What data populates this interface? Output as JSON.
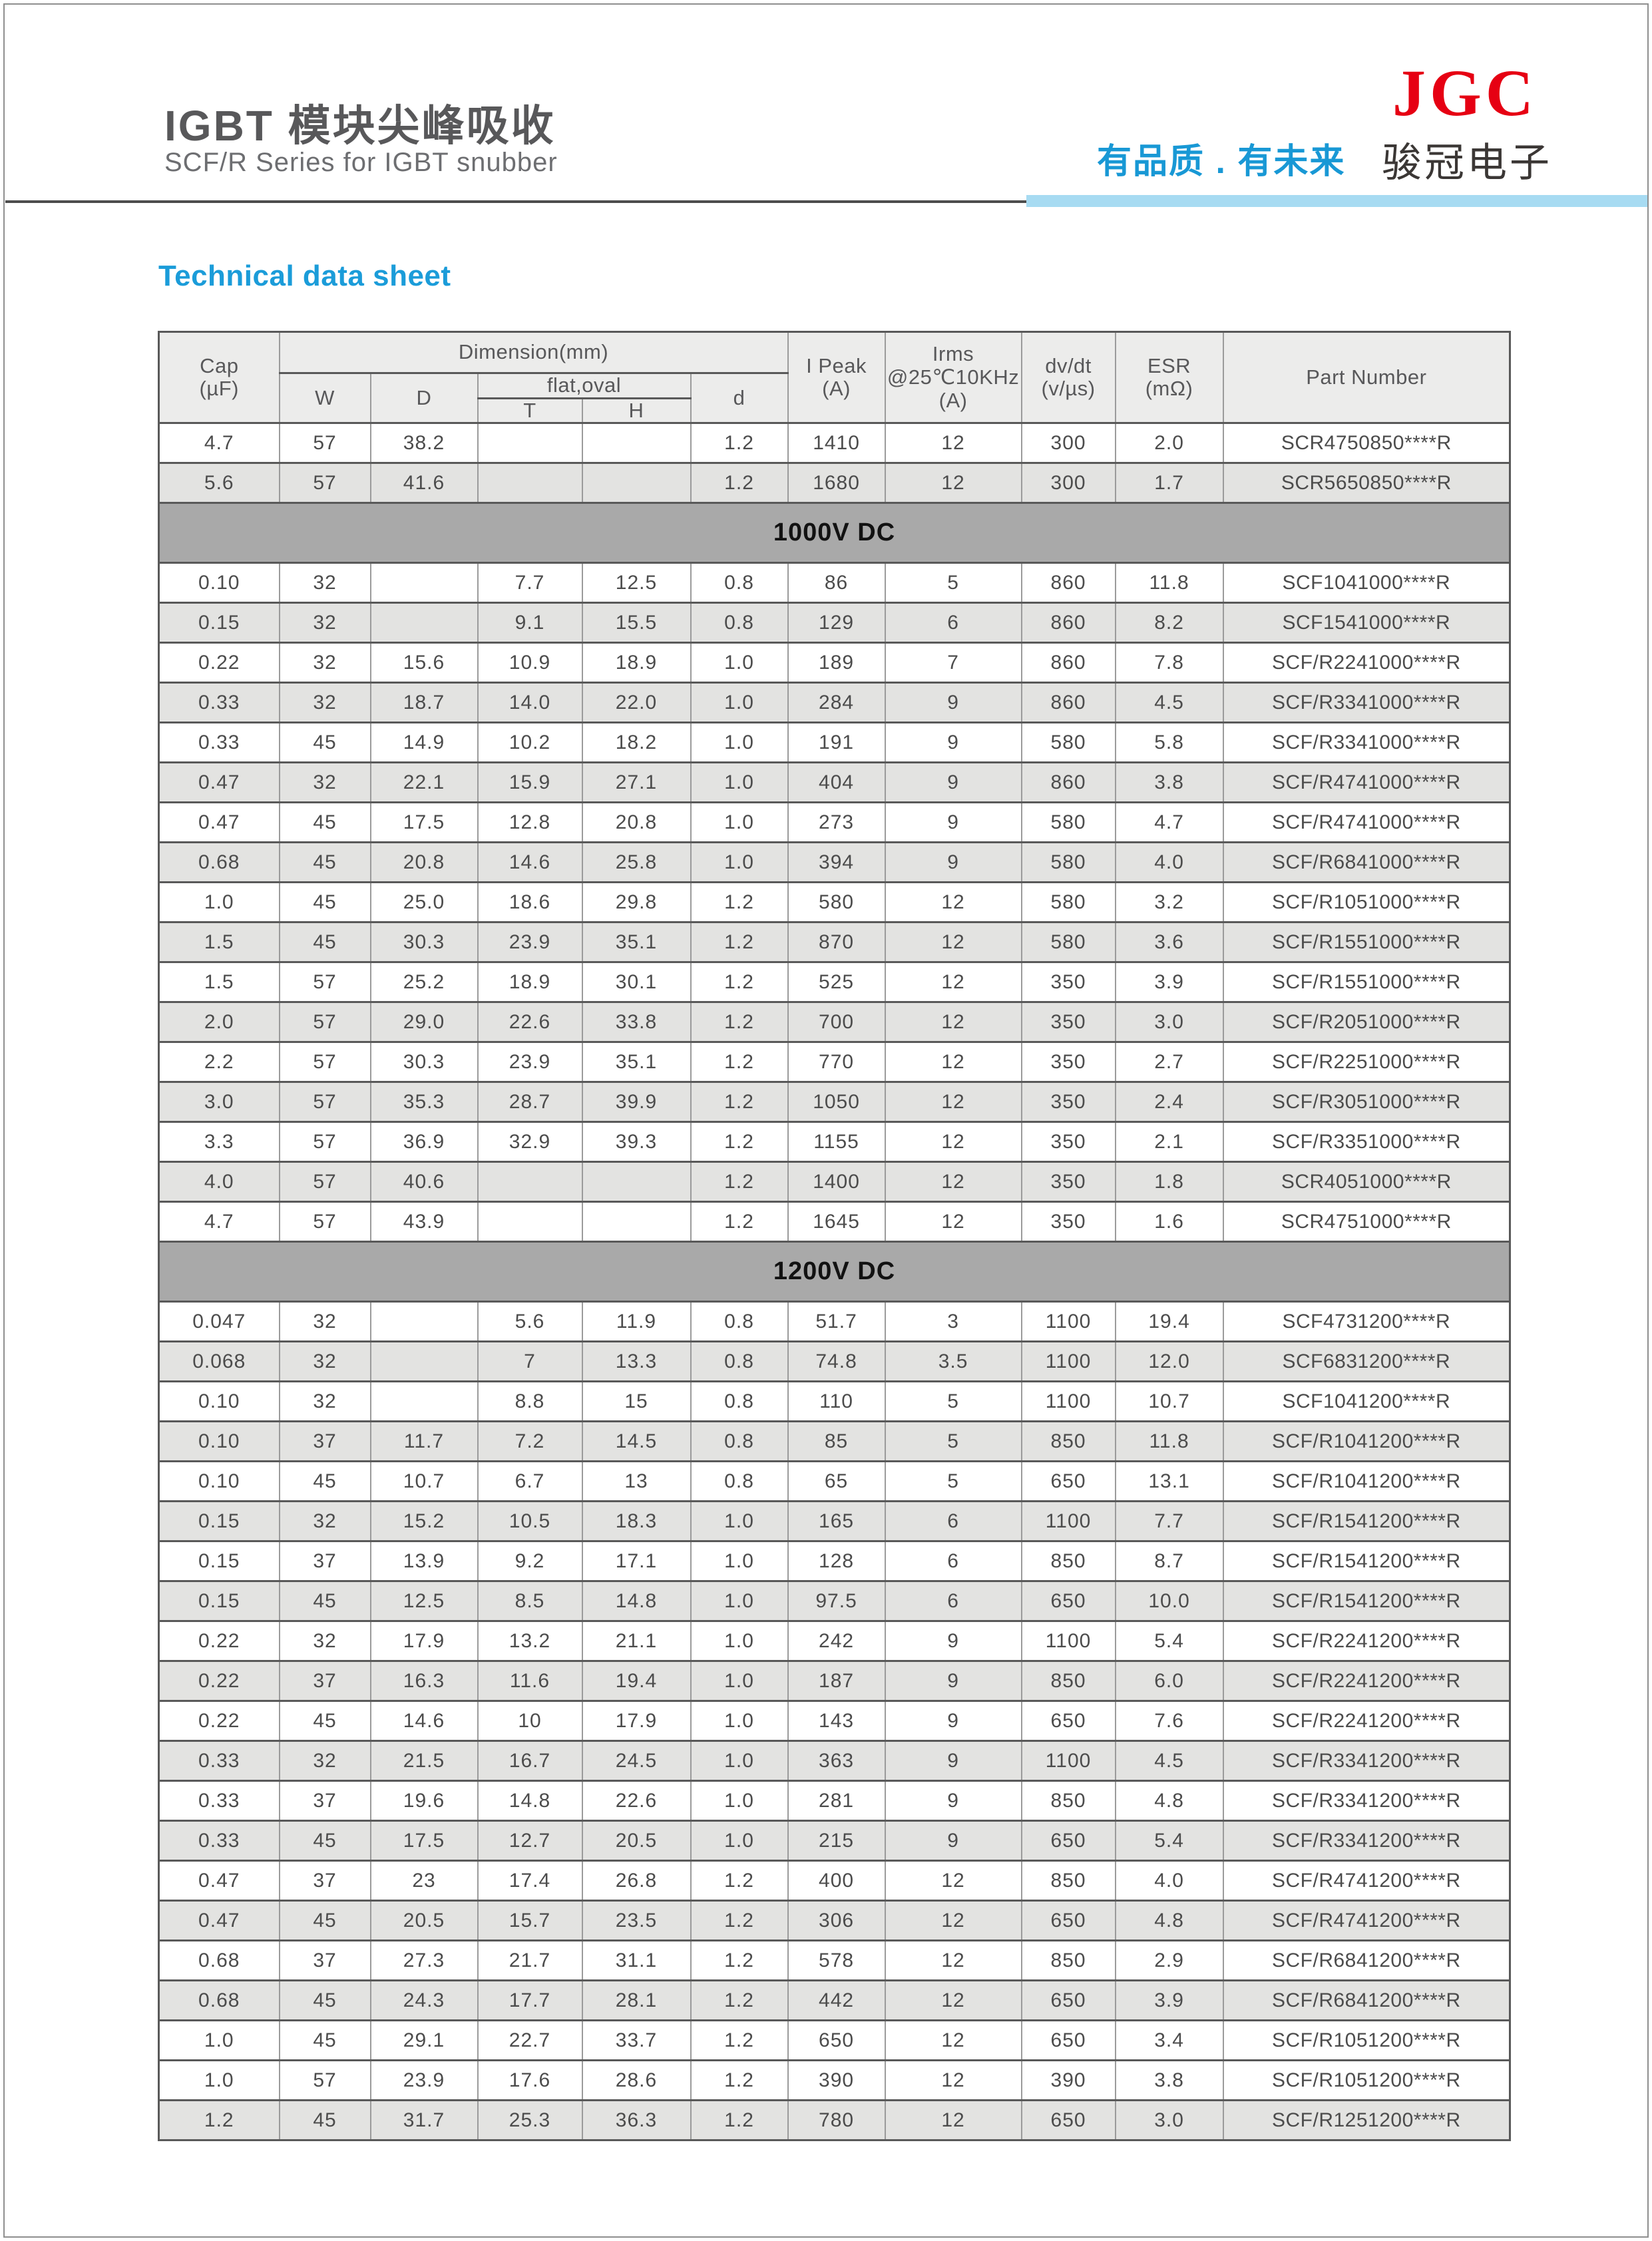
{
  "header": {
    "title_cn": "IGBT 模块尖峰吸收",
    "subtitle_en": "SCF/R Series for IGBT snubber",
    "slogan": "有品质 . 有未来",
    "logo_text": "JGC",
    "company_cn": "骏冠电子"
  },
  "sheet_title": "Technical data sheet",
  "colors": {
    "accent_blue": "#1b9cd9",
    "slogan_blue": "#1898d5",
    "light_blue_band": "#a7dbf2",
    "logo_red": "#e60013",
    "section_band_gray": "#a9a9a9",
    "alt_row_gray": "#e3e3e1",
    "header_cell_gray": "#ececeb"
  },
  "table": {
    "header": {
      "cap": "Cap\n(µF)",
      "dimension": "Dimension(mm)",
      "w": "W",
      "d": "D",
      "flat_oval": "flat,oval",
      "t": "T",
      "h": "H",
      "dia": "d",
      "i_peak": "I Peak\n(A)",
      "irms": "Irms\n@25℃10KHz\n(A)",
      "dvdt": "dv/dt\n(v/µs)",
      "esr": "ESR\n(mΩ)",
      "part_number": "Part Number"
    },
    "rows": [
      {
        "shade": "w",
        "cap": "4.7",
        "w": "57",
        "d": "38.2",
        "t": "",
        "h": "",
        "dia": "1.2",
        "i_peak": "1410",
        "irms": "12",
        "dvdt": "300",
        "esr": "2.0",
        "part": "SCR4750850****R"
      },
      {
        "shade": "g",
        "cap": "5.6",
        "w": "57",
        "d": "41.6",
        "t": "",
        "h": "",
        "dia": "1.2",
        "i_peak": "1680",
        "irms": "12",
        "dvdt": "300",
        "esr": "1.7",
        "part": "SCR5650850****R"
      },
      {
        "section": "1000V DC"
      },
      {
        "shade": "w",
        "cap": "0.10",
        "w": "32",
        "d": "",
        "t": "7.7",
        "h": "12.5",
        "dia": "0.8",
        "i_peak": "86",
        "irms": "5",
        "dvdt": "860",
        "esr": "11.8",
        "part": "SCF1041000****R"
      },
      {
        "shade": "g",
        "cap": "0.15",
        "w": "32",
        "d": "",
        "t": "9.1",
        "h": "15.5",
        "dia": "0.8",
        "i_peak": "129",
        "irms": "6",
        "dvdt": "860",
        "esr": "8.2",
        "part": "SCF1541000****R"
      },
      {
        "shade": "w",
        "cap": "0.22",
        "w": "32",
        "d": "15.6",
        "t": "10.9",
        "h": "18.9",
        "dia": "1.0",
        "i_peak": "189",
        "irms": "7",
        "dvdt": "860",
        "esr": "7.8",
        "part": "SCF/R2241000****R"
      },
      {
        "shade": "g",
        "cap": "0.33",
        "w": "32",
        "d": "18.7",
        "t": "14.0",
        "h": "22.0",
        "dia": "1.0",
        "i_peak": "284",
        "irms": "9",
        "dvdt": "860",
        "esr": "4.5",
        "part": "SCF/R3341000****R"
      },
      {
        "shade": "w",
        "cap": "0.33",
        "w": "45",
        "d": "14.9",
        "t": "10.2",
        "h": "18.2",
        "dia": "1.0",
        "i_peak": "191",
        "irms": "9",
        "dvdt": "580",
        "esr": "5.8",
        "part": "SCF/R3341000****R"
      },
      {
        "shade": "g",
        "cap": "0.47",
        "w": "32",
        "d": "22.1",
        "t": "15.9",
        "h": "27.1",
        "dia": "1.0",
        "i_peak": "404",
        "irms": "9",
        "dvdt": "860",
        "esr": "3.8",
        "part": "SCF/R4741000****R"
      },
      {
        "shade": "w",
        "cap": "0.47",
        "w": "45",
        "d": "17.5",
        "t": "12.8",
        "h": "20.8",
        "dia": "1.0",
        "i_peak": "273",
        "irms": "9",
        "dvdt": "580",
        "esr": "4.7",
        "part": "SCF/R4741000****R"
      },
      {
        "shade": "g",
        "cap": "0.68",
        "w": "45",
        "d": "20.8",
        "t": "14.6",
        "h": "25.8",
        "dia": "1.0",
        "i_peak": "394",
        "irms": "9",
        "dvdt": "580",
        "esr": "4.0",
        "part": "SCF/R6841000****R"
      },
      {
        "shade": "w",
        "cap": "1.0",
        "w": "45",
        "d": "25.0",
        "t": "18.6",
        "h": "29.8",
        "dia": "1.2",
        "i_peak": "580",
        "irms": "12",
        "dvdt": "580",
        "esr": "3.2",
        "part": "SCF/R1051000****R"
      },
      {
        "shade": "g",
        "cap": "1.5",
        "w": "45",
        "d": "30.3",
        "t": "23.9",
        "h": "35.1",
        "dia": "1.2",
        "i_peak": "870",
        "irms": "12",
        "dvdt": "580",
        "esr": "3.6",
        "part": "SCF/R1551000****R"
      },
      {
        "shade": "w",
        "cap": "1.5",
        "w": "57",
        "d": "25.2",
        "t": "18.9",
        "h": "30.1",
        "dia": "1.2",
        "i_peak": "525",
        "irms": "12",
        "dvdt": "350",
        "esr": "3.9",
        "part": "SCF/R1551000****R"
      },
      {
        "shade": "g",
        "cap": "2.0",
        "w": "57",
        "d": "29.0",
        "t": "22.6",
        "h": "33.8",
        "dia": "1.2",
        "i_peak": "700",
        "irms": "12",
        "dvdt": "350",
        "esr": "3.0",
        "part": "SCF/R2051000****R"
      },
      {
        "shade": "w",
        "cap": "2.2",
        "w": "57",
        "d": "30.3",
        "t": "23.9",
        "h": "35.1",
        "dia": "1.2",
        "i_peak": "770",
        "irms": "12",
        "dvdt": "350",
        "esr": "2.7",
        "part": "SCF/R2251000****R"
      },
      {
        "shade": "g",
        "cap": "3.0",
        "w": "57",
        "d": "35.3",
        "t": "28.7",
        "h": "39.9",
        "dia": "1.2",
        "i_peak": "1050",
        "irms": "12",
        "dvdt": "350",
        "esr": "2.4",
        "part": "SCF/R3051000****R"
      },
      {
        "shade": "w",
        "cap": "3.3",
        "w": "57",
        "d": "36.9",
        "t": "32.9",
        "h": "39.3",
        "dia": "1.2",
        "i_peak": "1155",
        "irms": "12",
        "dvdt": "350",
        "esr": "2.1",
        "part": "SCF/R3351000****R"
      },
      {
        "shade": "g",
        "cap": "4.0",
        "w": "57",
        "d": "40.6",
        "t": "",
        "h": "",
        "dia": "1.2",
        "i_peak": "1400",
        "irms": "12",
        "dvdt": "350",
        "esr": "1.8",
        "part": "SCR4051000****R"
      },
      {
        "shade": "w",
        "cap": "4.7",
        "w": "57",
        "d": "43.9",
        "t": "",
        "h": "",
        "dia": "1.2",
        "i_peak": "1645",
        "irms": "12",
        "dvdt": "350",
        "esr": "1.6",
        "part": "SCR4751000****R"
      },
      {
        "section": "1200V DC"
      },
      {
        "shade": "w",
        "cap": "0.047",
        "w": "32",
        "d": "",
        "t": "5.6",
        "h": "11.9",
        "dia": "0.8",
        "i_peak": "51.7",
        "irms": "3",
        "dvdt": "1100",
        "esr": "19.4",
        "part": "SCF4731200****R"
      },
      {
        "shade": "g",
        "cap": "0.068",
        "w": "32",
        "d": "",
        "t": "7",
        "h": "13.3",
        "dia": "0.8",
        "i_peak": "74.8",
        "irms": "3.5",
        "dvdt": "1100",
        "esr": "12.0",
        "part": "SCF6831200****R"
      },
      {
        "shade": "w",
        "cap": "0.10",
        "w": "32",
        "d": "",
        "t": "8.8",
        "h": "15",
        "dia": "0.8",
        "i_peak": "110",
        "irms": "5",
        "dvdt": "1100",
        "esr": "10.7",
        "part": "SCF1041200****R"
      },
      {
        "shade": "g",
        "cap": "0.10",
        "w": "37",
        "d": "11.7",
        "t": "7.2",
        "h": "14.5",
        "dia": "0.8",
        "i_peak": "85",
        "irms": "5",
        "dvdt": "850",
        "esr": "11.8",
        "part": "SCF/R1041200****R"
      },
      {
        "shade": "w",
        "cap": "0.10",
        "w": "45",
        "d": "10.7",
        "t": "6.7",
        "h": "13",
        "dia": "0.8",
        "i_peak": "65",
        "irms": "5",
        "dvdt": "650",
        "esr": "13.1",
        "part": "SCF/R1041200****R"
      },
      {
        "shade": "g",
        "cap": "0.15",
        "w": "32",
        "d": "15.2",
        "t": "10.5",
        "h": "18.3",
        "dia": "1.0",
        "i_peak": "165",
        "irms": "6",
        "dvdt": "1100",
        "esr": "7.7",
        "part": "SCF/R1541200****R"
      },
      {
        "shade": "w",
        "cap": "0.15",
        "w": "37",
        "d": "13.9",
        "t": "9.2",
        "h": "17.1",
        "dia": "1.0",
        "i_peak": "128",
        "irms": "6",
        "dvdt": "850",
        "esr": "8.7",
        "part": "SCF/R1541200****R"
      },
      {
        "shade": "g",
        "cap": "0.15",
        "w": "45",
        "d": "12.5",
        "t": "8.5",
        "h": "14.8",
        "dia": "1.0",
        "i_peak": "97.5",
        "irms": "6",
        "dvdt": "650",
        "esr": "10.0",
        "part": "SCF/R1541200****R"
      },
      {
        "shade": "w",
        "cap": "0.22",
        "w": "32",
        "d": "17.9",
        "t": "13.2",
        "h": "21.1",
        "dia": "1.0",
        "i_peak": "242",
        "irms": "9",
        "dvdt": "1100",
        "esr": "5.4",
        "part": "SCF/R2241200****R"
      },
      {
        "shade": "g",
        "cap": "0.22",
        "w": "37",
        "d": "16.3",
        "t": "11.6",
        "h": "19.4",
        "dia": "1.0",
        "i_peak": "187",
        "irms": "9",
        "dvdt": "850",
        "esr": "6.0",
        "part": "SCF/R2241200****R"
      },
      {
        "shade": "w",
        "cap": "0.22",
        "w": "45",
        "d": "14.6",
        "t": "10",
        "h": "17.9",
        "dia": "1.0",
        "i_peak": "143",
        "irms": "9",
        "dvdt": "650",
        "esr": "7.6",
        "part": "SCF/R2241200****R"
      },
      {
        "shade": "g",
        "cap": "0.33",
        "w": "32",
        "d": "21.5",
        "t": "16.7",
        "h": "24.5",
        "dia": "1.0",
        "i_peak": "363",
        "irms": "9",
        "dvdt": "1100",
        "esr": "4.5",
        "part": "SCF/R3341200****R"
      },
      {
        "shade": "w",
        "cap": "0.33",
        "w": "37",
        "d": "19.6",
        "t": "14.8",
        "h": "22.6",
        "dia": "1.0",
        "i_peak": "281",
        "irms": "9",
        "dvdt": "850",
        "esr": "4.8",
        "part": "SCF/R3341200****R"
      },
      {
        "shade": "g",
        "cap": "0.33",
        "w": "45",
        "d": "17.5",
        "t": "12.7",
        "h": "20.5",
        "dia": "1.0",
        "i_peak": "215",
        "irms": "9",
        "dvdt": "650",
        "esr": "5.4",
        "part": "SCF/R3341200****R"
      },
      {
        "shade": "w",
        "cap": "0.47",
        "w": "37",
        "d": "23",
        "t": "17.4",
        "h": "26.8",
        "dia": "1.2",
        "i_peak": "400",
        "irms": "12",
        "dvdt": "850",
        "esr": "4.0",
        "part": "SCF/R4741200****R"
      },
      {
        "shade": "g",
        "cap": "0.47",
        "w": "45",
        "d": "20.5",
        "t": "15.7",
        "h": "23.5",
        "dia": "1.2",
        "i_peak": "306",
        "irms": "12",
        "dvdt": "650",
        "esr": "4.8",
        "part": "SCF/R4741200****R"
      },
      {
        "shade": "w",
        "cap": "0.68",
        "w": "37",
        "d": "27.3",
        "t": "21.7",
        "h": "31.1",
        "dia": "1.2",
        "i_peak": "578",
        "irms": "12",
        "dvdt": "850",
        "esr": "2.9",
        "part": "SCF/R6841200****R"
      },
      {
        "shade": "g",
        "cap": "0.68",
        "w": "45",
        "d": "24.3",
        "t": "17.7",
        "h": "28.1",
        "dia": "1.2",
        "i_peak": "442",
        "irms": "12",
        "dvdt": "650",
        "esr": "3.9",
        "part": "SCF/R6841200****R"
      },
      {
        "shade": "w",
        "cap": "1.0",
        "w": "45",
        "d": "29.1",
        "t": "22.7",
        "h": "33.7",
        "dia": "1.2",
        "i_peak": "650",
        "irms": "12",
        "dvdt": "650",
        "esr": "3.4",
        "part": "SCF/R1051200****R"
      },
      {
        "shade": "w",
        "cap": "1.0",
        "w": "57",
        "d": "23.9",
        "t": "17.6",
        "h": "28.6",
        "dia": "1.2",
        "i_peak": "390",
        "irms": "12",
        "dvdt": "390",
        "esr": "3.8",
        "part": "SCF/R1051200****R"
      },
      {
        "shade": "g",
        "cap": "1.2",
        "w": "45",
        "d": "31.7",
        "t": "25.3",
        "h": "36.3",
        "dia": "1.2",
        "i_peak": "780",
        "irms": "12",
        "dvdt": "650",
        "esr": "3.0",
        "part": "SCF/R1251200****R"
      }
    ]
  }
}
